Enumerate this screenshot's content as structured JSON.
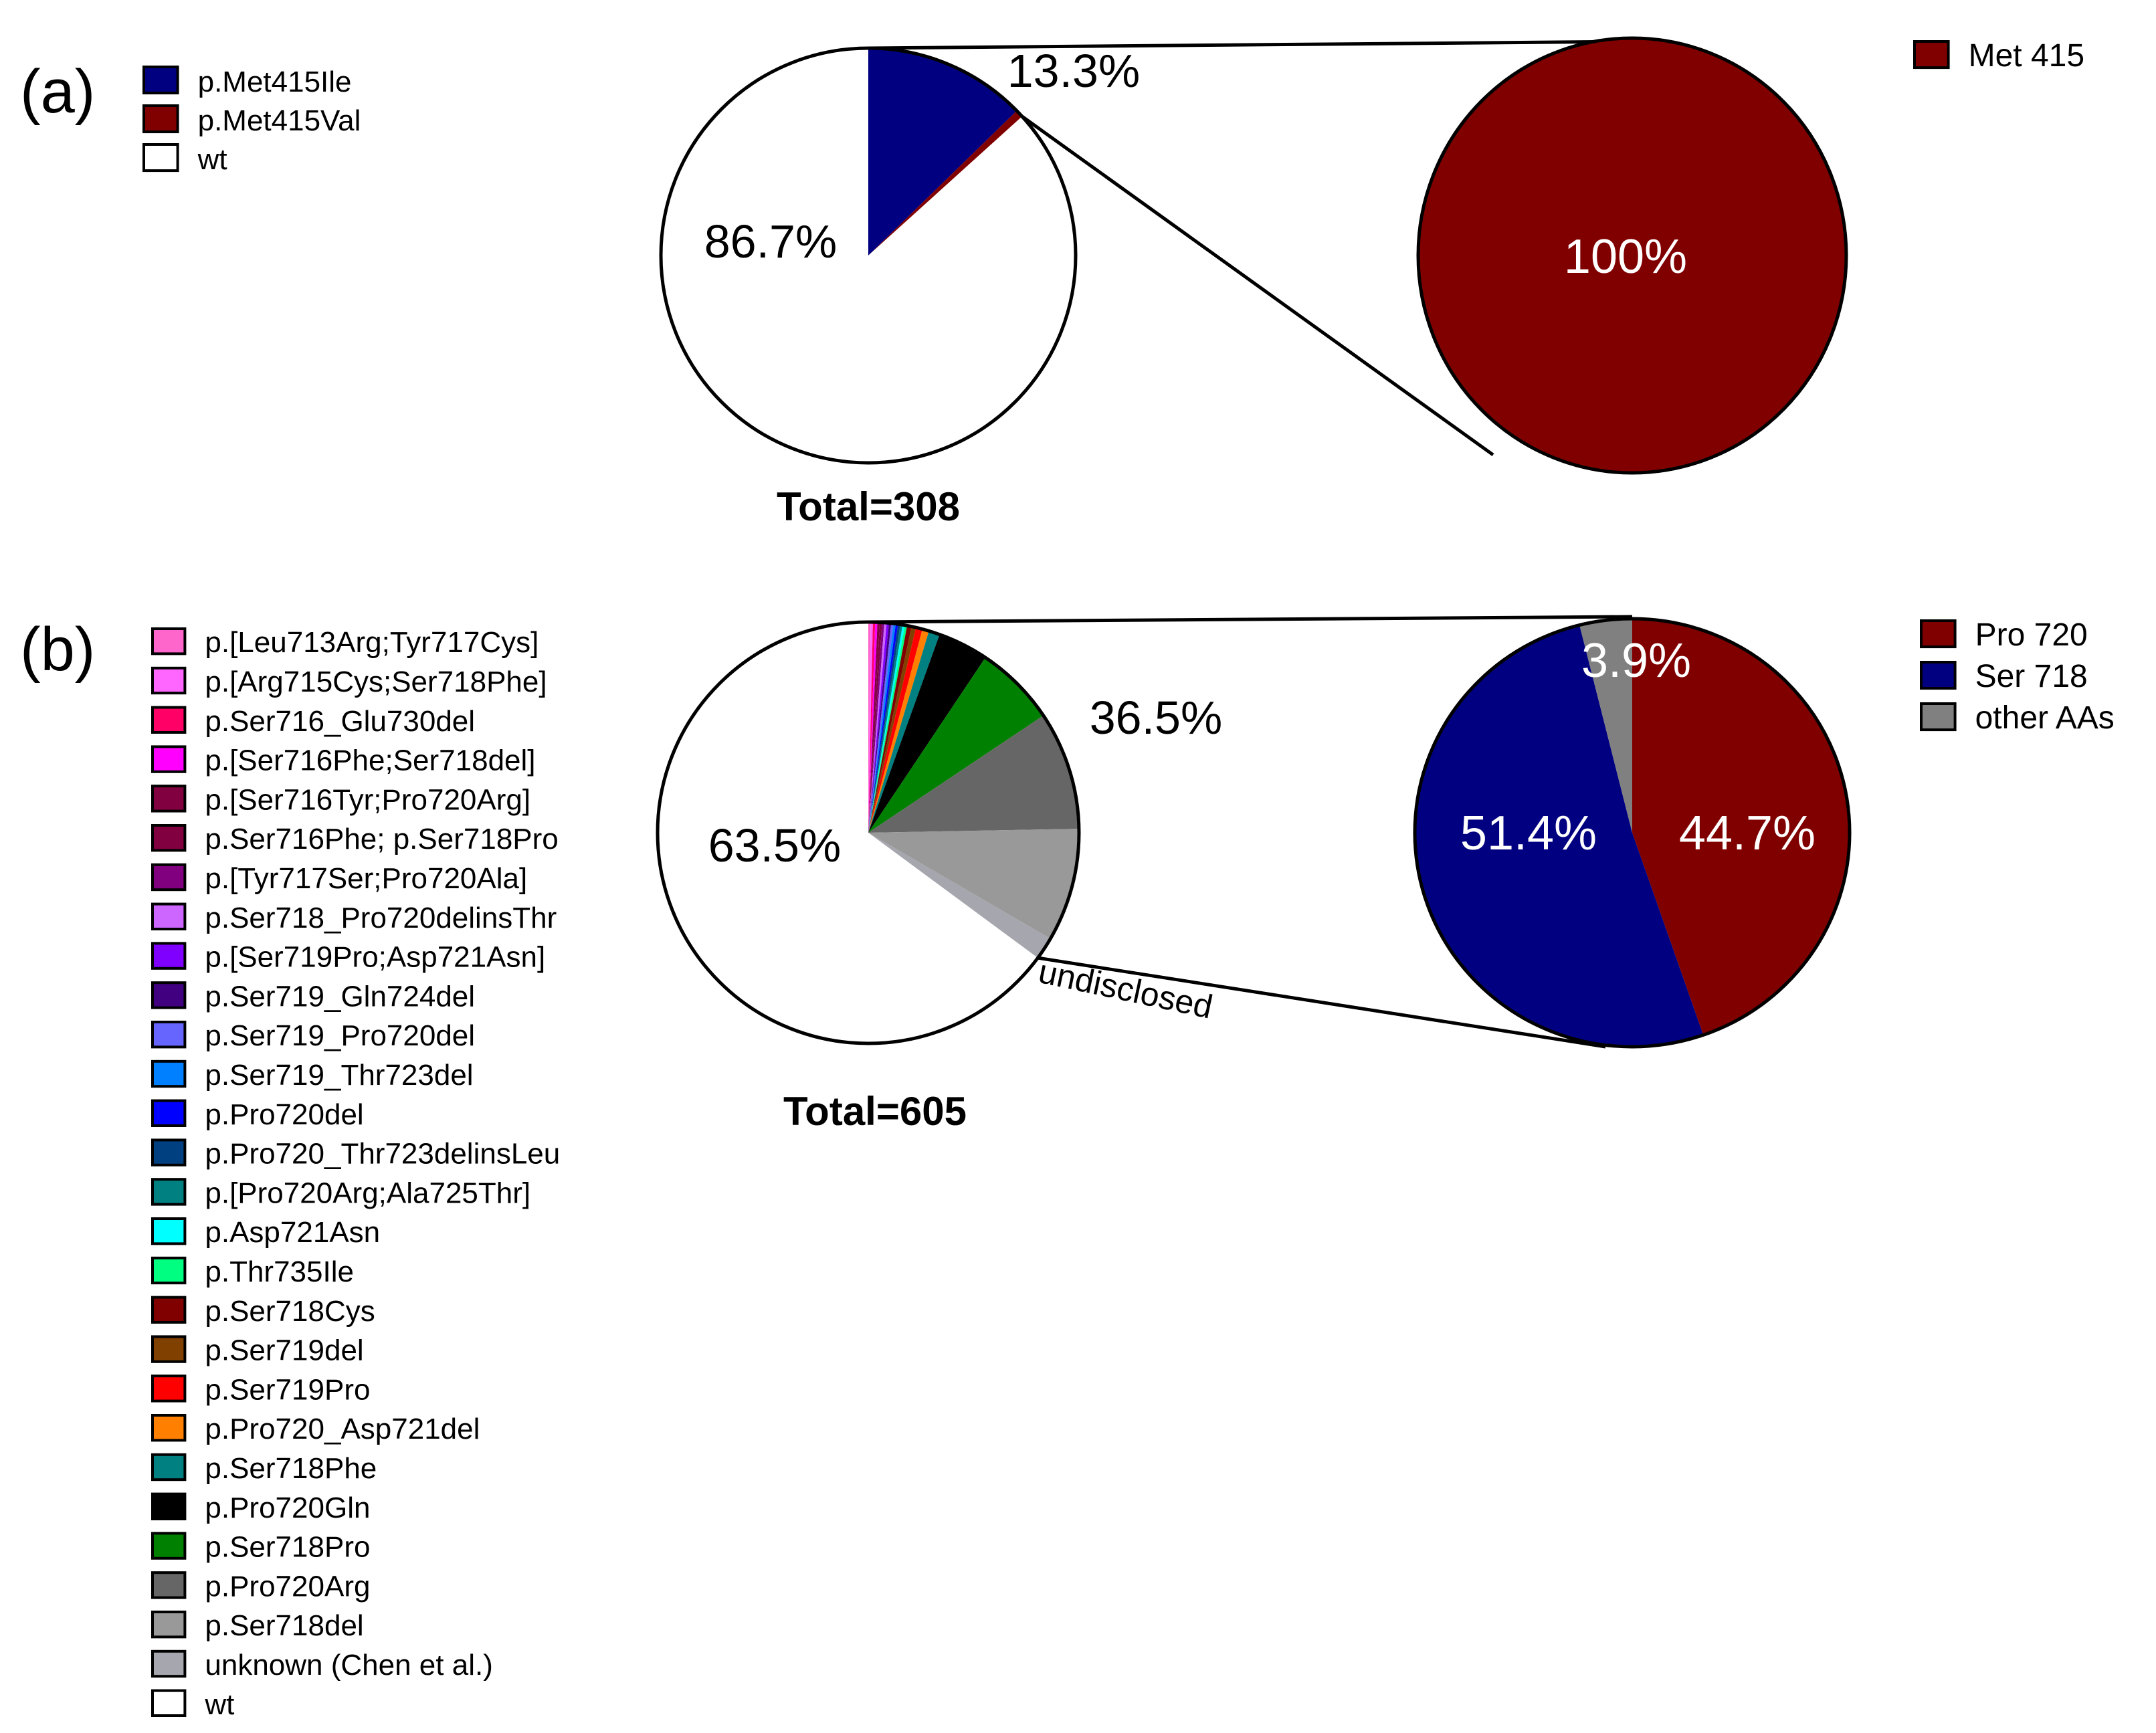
{
  "chart_data": [
    {
      "panel": "(a)",
      "type": "pie",
      "total_label": "Total=308",
      "legend": [
        {
          "label": "p.Met415Ile",
          "color": "#000080"
        },
        {
          "label": "p.Met415Val",
          "color": "#800000"
        },
        {
          "label": "wt",
          "color": "#ffffff"
        }
      ],
      "slices": [
        {
          "label": "p.Met415Ile",
          "value": 12.7,
          "color": "#000080"
        },
        {
          "label": "p.Met415Val",
          "value": 0.6,
          "color": "#800000"
        },
        {
          "label": "wt",
          "value": 86.7,
          "color": "#ffffff"
        }
      ],
      "mutated_label": "13.3%",
      "wt_label": "86.7%",
      "breakdown": {
        "legend": [
          {
            "label": "Met 415",
            "color": "#800000"
          }
        ],
        "slices": [
          {
            "label": "Met 415",
            "value": 100,
            "display": "100%",
            "color": "#800000"
          }
        ]
      }
    },
    {
      "panel": "(b)",
      "type": "pie",
      "total_label": "Total=605",
      "legend": [
        {
          "label": "p.[Leu713Arg;Tyr717Cys]",
          "color": "#ff66cc"
        },
        {
          "label": "p.[Arg715Cys;Ser718Phe]",
          "color": "#ff66ff"
        },
        {
          "label": "p.Ser716_Glu730del",
          "color": "#ff0066"
        },
        {
          "label": "p.[Ser716Phe;Ser718del]",
          "color": "#ff00ff"
        },
        {
          "label": "p.[Ser716Tyr;Pro720Arg]",
          "color": "#800040"
        },
        {
          "label": "p.Ser716Phe; p.Ser718Pro",
          "color": "#800040"
        },
        {
          "label": "p.[Tyr717Ser;Pro720Ala]",
          "color": "#800080"
        },
        {
          "label": "p.Ser718_Pro720delinsThr",
          "color": "#cc66ff"
        },
        {
          "label": "p.[Ser719Pro;Asp721Asn]",
          "color": "#8000ff"
        },
        {
          "label": "p.Ser719_Gln724del",
          "color": "#400080"
        },
        {
          "label": "p.Ser719_Pro720del",
          "color": "#6666ff"
        },
        {
          "label": "p.Ser719_Thr723del",
          "color": "#0080ff"
        },
        {
          "label": "p.Pro720del",
          "color": "#0000ff"
        },
        {
          "label": "p.Pro720_Thr723delinsLeu",
          "color": "#004080"
        },
        {
          "label": "p.[Pro720Arg;Ala725Thr]",
          "color": "#008080"
        },
        {
          "label": "p.Asp721Asn",
          "color": "#00ffff"
        },
        {
          "label": "p.Thr735Ile",
          "color": "#00ff80"
        },
        {
          "label": "p.Ser718Cys",
          "color": "#800000"
        },
        {
          "label": "p.Ser719del",
          "color": "#804000"
        },
        {
          "label": "p.Ser719Pro",
          "color": "#ff0000"
        },
        {
          "label": "p.Pro720_Asp721del",
          "color": "#ff8000"
        },
        {
          "label": "p.Ser718Phe",
          "color": "#008080"
        },
        {
          "label": "p.Pro720Gln",
          "color": "#000000"
        },
        {
          "label": "p.Ser718Pro",
          "color": "#008000"
        },
        {
          "label": "p.Pro720Arg",
          "color": "#666666"
        },
        {
          "label": "p.Ser718del",
          "color": "#999999"
        },
        {
          "label": "unknown (Chen et al.)",
          "color": "#a6a6ae"
        },
        {
          "label": "wt",
          "color": "#ffffff"
        }
      ],
      "slices": [
        {
          "label": "p.[Leu713Arg;Tyr717Cys]",
          "value": 0.17,
          "color": "#ff66cc"
        },
        {
          "label": "p.[Arg715Cys;Ser718Phe]",
          "value": 0.17,
          "color": "#ff66ff"
        },
        {
          "label": "p.Ser716_Glu730del",
          "value": 0.17,
          "color": "#ff0066"
        },
        {
          "label": "p.[Ser716Phe;Ser718del]",
          "value": 0.17,
          "color": "#ff00ff"
        },
        {
          "label": "p.[Ser716Tyr;Pro720Arg]",
          "value": 0.17,
          "color": "#800040"
        },
        {
          "label": "p.Ser716Phe; p.Ser718Pro",
          "value": 0.17,
          "color": "#800040"
        },
        {
          "label": "p.[Tyr717Ser;Pro720Ala]",
          "value": 0.17,
          "color": "#800080"
        },
        {
          "label": "p.Ser718_Pro720delinsThr",
          "value": 0.17,
          "color": "#cc66ff"
        },
        {
          "label": "p.[Ser719Pro;Asp721Asn]",
          "value": 0.17,
          "color": "#8000ff"
        },
        {
          "label": "p.Ser719_Gln724del",
          "value": 0.17,
          "color": "#400080"
        },
        {
          "label": "p.Ser719_Pro720del",
          "value": 0.17,
          "color": "#6666ff"
        },
        {
          "label": "p.Ser719_Thr723del",
          "value": 0.17,
          "color": "#0080ff"
        },
        {
          "label": "p.Pro720del",
          "value": 0.17,
          "color": "#0000ff"
        },
        {
          "label": "p.Pro720_Thr723delinsLeu",
          "value": 0.17,
          "color": "#004080"
        },
        {
          "label": "p.[Pro720Arg;Ala725Thr]",
          "value": 0.17,
          "color": "#008080"
        },
        {
          "label": "p.Asp721Asn",
          "value": 0.17,
          "color": "#00ffff"
        },
        {
          "label": "p.Thr735Ile",
          "value": 0.17,
          "color": "#00ff80"
        },
        {
          "label": "p.Ser718Cys",
          "value": 0.33,
          "color": "#800000"
        },
        {
          "label": "p.Ser719del",
          "value": 0.33,
          "color": "#804000"
        },
        {
          "label": "p.Ser719Pro",
          "value": 0.5,
          "color": "#ff0000"
        },
        {
          "label": "p.Pro720_Asp721del",
          "value": 0.5,
          "color": "#ff8000"
        },
        {
          "label": "p.Ser718Phe",
          "value": 0.83,
          "color": "#008080"
        },
        {
          "label": "p.Pro720Gln",
          "value": 3.8,
          "color": "#000000"
        },
        {
          "label": "p.Ser718Pro",
          "value": 6.1,
          "color": "#008000"
        },
        {
          "label": "p.Pro720Arg",
          "value": 8.9,
          "color": "#666666"
        },
        {
          "label": "p.Ser718del",
          "value": 8.5,
          "color": "#999999"
        },
        {
          "label": "unknown (Chen et al.)",
          "value": 1.7,
          "color": "#a6a6ae"
        },
        {
          "label": "wt",
          "value": 63.5,
          "color": "#ffffff"
        }
      ],
      "mutated_label": "36.5%",
      "wt_label": "63.5%",
      "undisclosed_label": "undisclosed",
      "breakdown": {
        "legend": [
          {
            "label": "Pro 720",
            "color": "#800000"
          },
          {
            "label": "Ser 718",
            "color": "#000080"
          },
          {
            "label": "other AAs",
            "color": "#808080"
          }
        ],
        "slices": [
          {
            "label": "Pro 720",
            "value": 44.7,
            "display": "44.7%",
            "color": "#800000"
          },
          {
            "label": "Ser 718",
            "value": 51.4,
            "display": "51.4%",
            "color": "#000080"
          },
          {
            "label": "other AAs",
            "value": 3.9,
            "display": "3.9%",
            "color": "#808080"
          }
        ]
      }
    }
  ]
}
